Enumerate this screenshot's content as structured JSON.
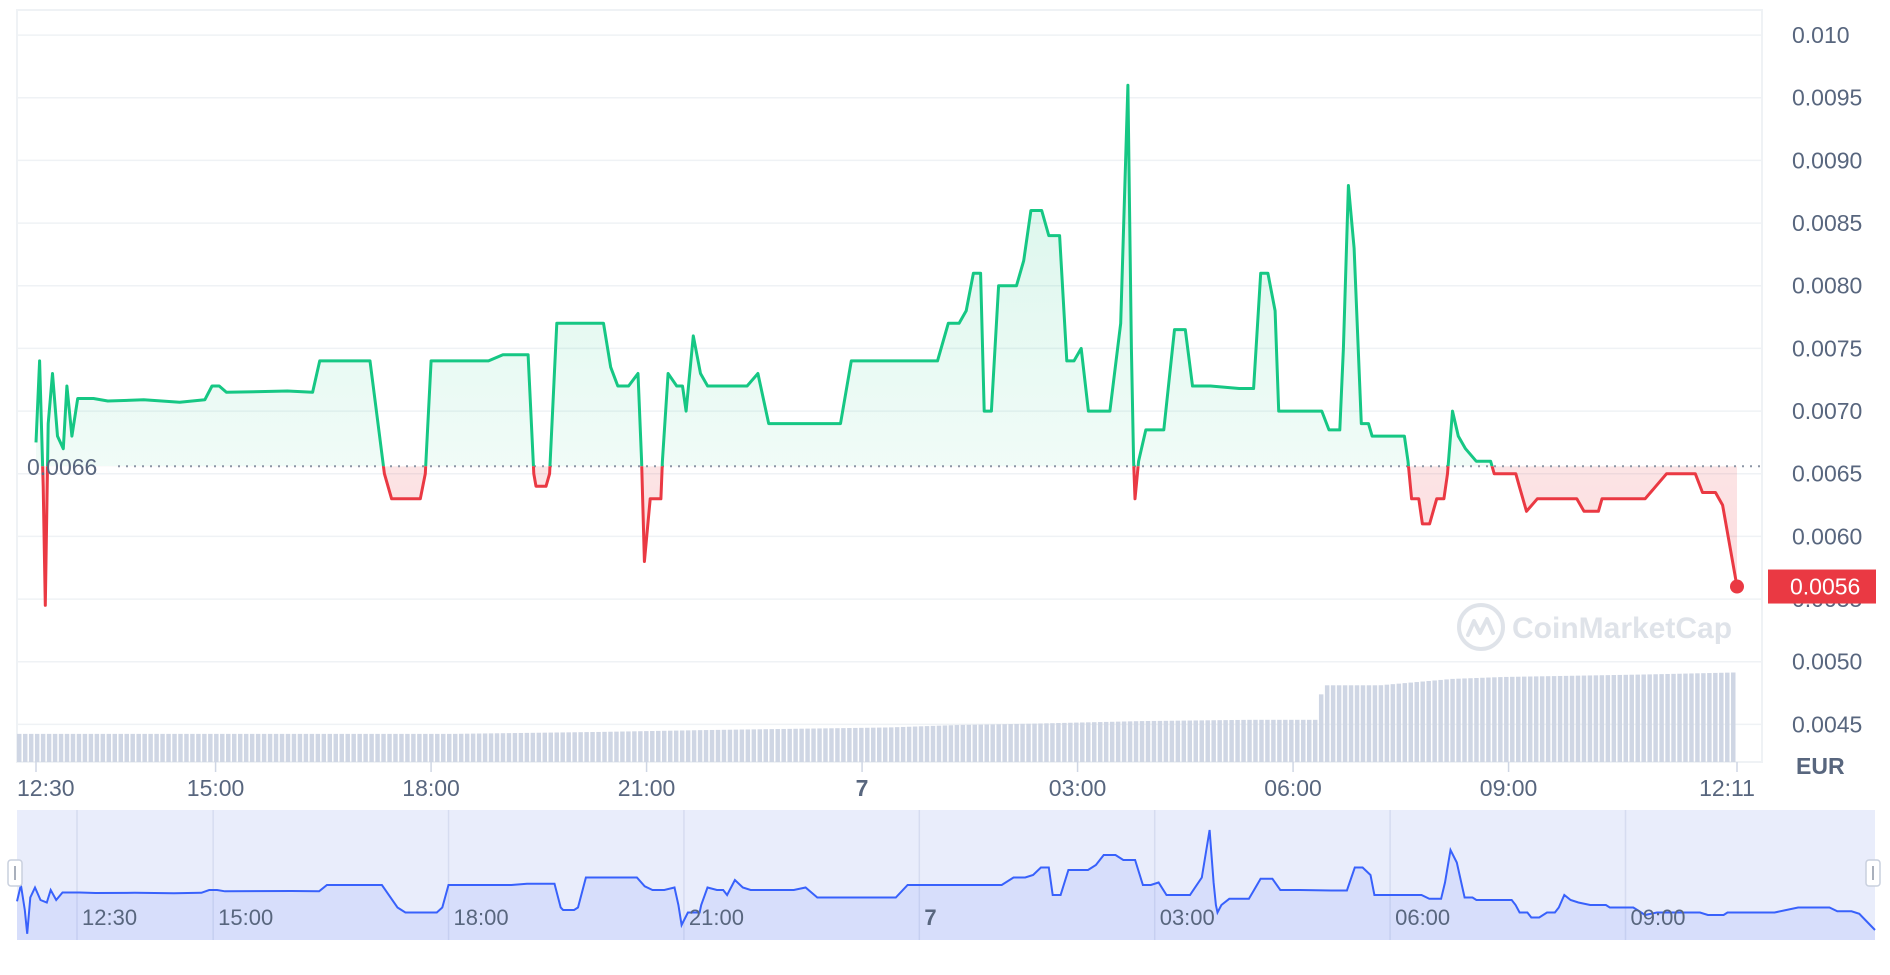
{
  "chart_data": {
    "type": "line",
    "y_range": [
      0.0042,
      0.0102
    ],
    "y_ticks": [
      "0.010",
      "0.0095",
      "0.0090",
      "0.0085",
      "0.0080",
      "0.0075",
      "0.0070",
      "0.0065",
      "0.0060",
      "0.0055",
      "0.0050",
      "0.0045"
    ],
    "y_tick_values": [
      0.01,
      0.0095,
      0.009,
      0.0085,
      0.008,
      0.0075,
      0.007,
      0.0065,
      0.006,
      0.0055,
      0.005,
      0.0045
    ],
    "x_ticks": [
      {
        "label": "12:30",
        "hours": 0,
        "bold": false
      },
      {
        "label": "15:00",
        "hours": 2.5,
        "bold": false
      },
      {
        "label": "18:00",
        "hours": 5.5,
        "bold": false
      },
      {
        "label": "21:00",
        "hours": 8.5,
        "bold": false
      },
      {
        "label": "7",
        "hours": 11.5,
        "bold": true
      },
      {
        "label": "03:00",
        "hours": 14.5,
        "bold": false
      },
      {
        "label": "06:00",
        "hours": 17.5,
        "bold": false
      },
      {
        "label": "09:00",
        "hours": 20.5,
        "bold": false
      },
      {
        "label": "12:11",
        "hours": 23.68,
        "bold": false
      }
    ],
    "currency_label": "EUR",
    "reference_price": 0.00656,
    "reference_label": "0.0066",
    "current_price_label": "0.0056",
    "watermark": "CoinMarketCap",
    "colors": {
      "up": "#16c784",
      "down": "#ea3943",
      "volume": "#cfd6e4",
      "navigator": "#3861fb",
      "grid": "#eff2f5"
    },
    "series": [
      {
        "values": [
          [
            0,
            0.00675
          ],
          [
            0.05,
            0.0074
          ],
          [
            0.1,
            0.0064
          ],
          [
            0.13,
            0.00545
          ],
          [
            0.17,
            0.0069
          ],
          [
            0.23,
            0.0073
          ],
          [
            0.3,
            0.0068
          ],
          [
            0.38,
            0.0067
          ],
          [
            0.43,
            0.0072
          ],
          [
            0.5,
            0.0068
          ],
          [
            0.58,
            0.0071
          ],
          [
            0.8,
            0.0071
          ],
          [
            1.0,
            0.00708
          ],
          [
            1.5,
            0.00709
          ],
          [
            2.0,
            0.00707
          ],
          [
            2.35,
            0.00709
          ],
          [
            2.45,
            0.0072
          ],
          [
            2.55,
            0.0072
          ],
          [
            2.65,
            0.00715
          ],
          [
            3.5,
            0.00716
          ],
          [
            3.85,
            0.00715
          ],
          [
            3.95,
            0.0074
          ],
          [
            4.5,
            0.0074
          ],
          [
            4.65,
            0.0074
          ],
          [
            4.85,
            0.0065
          ],
          [
            4.95,
            0.0063
          ],
          [
            5.35,
            0.0063
          ],
          [
            5.42,
            0.0065
          ],
          [
            5.5,
            0.0074
          ],
          [
            6.3,
            0.0074
          ],
          [
            6.5,
            0.00745
          ],
          [
            6.85,
            0.00745
          ],
          [
            6.93,
            0.0065
          ],
          [
            6.96,
            0.0064
          ],
          [
            7.1,
            0.0064
          ],
          [
            7.15,
            0.0065
          ],
          [
            7.25,
            0.0077
          ],
          [
            7.9,
            0.0077
          ],
          [
            8.0,
            0.00735
          ],
          [
            8.1,
            0.0072
          ],
          [
            8.25,
            0.0072
          ],
          [
            8.38,
            0.0073
          ],
          [
            8.43,
            0.0066
          ],
          [
            8.47,
            0.0058
          ],
          [
            8.55,
            0.0063
          ],
          [
            8.7,
            0.0063
          ],
          [
            8.72,
            0.0066
          ],
          [
            8.8,
            0.0073
          ],
          [
            8.92,
            0.0072
          ],
          [
            9.0,
            0.0072
          ],
          [
            9.05,
            0.007
          ],
          [
            9.15,
            0.0076
          ],
          [
            9.25,
            0.0073
          ],
          [
            9.35,
            0.0072
          ],
          [
            9.7,
            0.0072
          ],
          [
            9.9,
            0.0072
          ],
          [
            10.05,
            0.0073
          ],
          [
            10.05,
            0.0073
          ],
          [
            10.2,
            0.0069
          ],
          [
            11.2,
            0.0069
          ],
          [
            11.35,
            0.0074
          ],
          [
            12.2,
            0.0074
          ],
          [
            12.4,
            0.0074
          ],
          [
            12.55,
            0.0074
          ],
          [
            12.7,
            0.0077
          ],
          [
            12.85,
            0.0077
          ],
          [
            12.95,
            0.0078
          ],
          [
            13.05,
            0.0081
          ],
          [
            13.15,
            0.0081
          ],
          [
            13.2,
            0.007
          ],
          [
            13.3,
            0.007
          ],
          [
            13.4,
            0.008
          ],
          [
            13.65,
            0.008
          ],
          [
            13.75,
            0.0082
          ],
          [
            13.85,
            0.0086
          ],
          [
            14.0,
            0.0086
          ],
          [
            14.1,
            0.0084
          ],
          [
            14.25,
            0.0084
          ],
          [
            14.35,
            0.0074
          ],
          [
            14.45,
            0.0074
          ],
          [
            14.55,
            0.0075
          ],
          [
            14.65,
            0.007
          ],
          [
            14.95,
            0.007
          ],
          [
            15.1,
            0.0077
          ],
          [
            15.2,
            0.0096
          ],
          [
            15.25,
            0.0075
          ],
          [
            15.28,
            0.0066
          ],
          [
            15.3,
            0.0063
          ],
          [
            15.35,
            0.0066
          ],
          [
            15.45,
            0.00685
          ],
          [
            15.7,
            0.00685
          ],
          [
            15.85,
            0.00765
          ],
          [
            16.0,
            0.00765
          ],
          [
            16.1,
            0.0072
          ],
          [
            16.35,
            0.0072
          ],
          [
            16.75,
            0.00718
          ],
          [
            16.95,
            0.00718
          ],
          [
            17.05,
            0.0081
          ],
          [
            17.15,
            0.0081
          ],
          [
            17.25,
            0.0078
          ],
          [
            17.3,
            0.007
          ],
          [
            17.7,
            0.007
          ],
          [
            17.9,
            0.007
          ],
          [
            18.0,
            0.00685
          ],
          [
            18.15,
            0.00685
          ],
          [
            18.2,
            0.0075
          ],
          [
            18.27,
            0.0088
          ],
          [
            18.35,
            0.0083
          ],
          [
            18.45,
            0.0069
          ],
          [
            18.55,
            0.0069
          ],
          [
            18.6,
            0.0068
          ],
          [
            18.9,
            0.0068
          ],
          [
            18.95,
            0.0068
          ],
          [
            19.05,
            0.0068
          ],
          [
            19.1,
            0.0066
          ],
          [
            19.15,
            0.0063
          ],
          [
            19.25,
            0.0063
          ],
          [
            19.3,
            0.0061
          ],
          [
            19.4,
            0.0061
          ],
          [
            19.5,
            0.0063
          ],
          [
            19.6,
            0.0063
          ],
          [
            19.65,
            0.0065
          ],
          [
            19.72,
            0.007
          ],
          [
            19.8,
            0.0068
          ],
          [
            19.9,
            0.0067
          ],
          [
            20.05,
            0.0066
          ],
          [
            20.25,
            0.0066
          ],
          [
            20.3,
            0.0065
          ],
          [
            20.45,
            0.0065
          ],
          [
            20.6,
            0.0065
          ],
          [
            20.65,
            0.0064
          ],
          [
            20.75,
            0.0062
          ],
          [
            20.9,
            0.0063
          ],
          [
            21.1,
            0.0063
          ],
          [
            21.25,
            0.0063
          ],
          [
            21.35,
            0.0063
          ],
          [
            21.45,
            0.0063
          ],
          [
            21.55,
            0.0062
          ],
          [
            21.75,
            0.0062
          ],
          [
            21.8,
            0.0063
          ],
          [
            22.1,
            0.0063
          ],
          [
            22.4,
            0.0063
          ],
          [
            22.55,
            0.0064
          ],
          [
            22.7,
            0.0065
          ],
          [
            22.85,
            0.0065
          ],
          [
            23.1,
            0.0065
          ],
          [
            23.2,
            0.00635
          ],
          [
            23.38,
            0.00635
          ],
          [
            23.48,
            0.00625
          ],
          [
            23.68,
            0.0056
          ]
        ]
      }
    ],
    "volume": [
      [
        0,
        0.044
      ],
      [
        6.0,
        0.044
      ],
      [
        8.0,
        0.047
      ],
      [
        9.5,
        0.05
      ],
      [
        12.0,
        0.054
      ],
      [
        13.0,
        0.058
      ],
      [
        14.0,
        0.06
      ],
      [
        15.5,
        0.064
      ],
      [
        17.0,
        0.066
      ],
      [
        17.95,
        0.066
      ],
      [
        18.0,
        0.12
      ],
      [
        18.8,
        0.12
      ],
      [
        19.3,
        0.125
      ],
      [
        19.8,
        0.13
      ],
      [
        20.5,
        0.133
      ],
      [
        21.5,
        0.135
      ],
      [
        22.5,
        0.137
      ],
      [
        23.68,
        0.14
      ]
    ]
  }
}
